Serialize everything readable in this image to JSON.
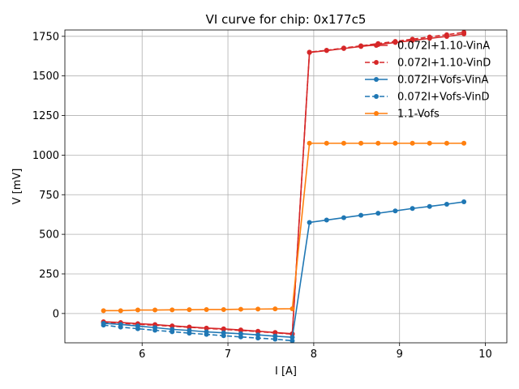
{
  "chart_data": {
    "type": "line",
    "title": "VI curve for chip: 0x177c5",
    "xlabel": "I [A]",
    "ylabel": "V [mV]",
    "xlim": [
      5.1,
      10.25
    ],
    "ylim": [
      -185,
      1790
    ],
    "xticks": [
      6,
      7,
      8,
      9,
      10
    ],
    "yticks": [
      0,
      250,
      500,
      750,
      1000,
      1250,
      1500,
      1750
    ],
    "grid": true,
    "legend_position": "upper-right",
    "x": [
      5.55,
      5.75,
      5.95,
      6.15,
      6.35,
      6.55,
      6.75,
      6.95,
      7.15,
      7.35,
      7.55,
      7.75,
      7.95,
      8.15,
      8.35,
      8.55,
      8.75,
      8.95,
      9.15,
      9.35,
      9.55,
      9.75
    ],
    "series": [
      {
        "name": "0.072I+1.10-VinA",
        "color": "#d62728",
        "dashed": false,
        "x": [
          5.55,
          5.75,
          5.95,
          6.15,
          6.35,
          6.55,
          6.75,
          6.95,
          7.15,
          7.35,
          7.55,
          7.75,
          7.95,
          8.15,
          8.35,
          8.55,
          8.75,
          8.95,
          9.15,
          9.35,
          9.55,
          9.75
        ],
        "values": [
          -52,
          -57,
          -64,
          -70,
          -78,
          -85,
          -92,
          -97,
          -104,
          -112,
          -120,
          -128,
          1648,
          1660,
          1673,
          1686,
          1698,
          1711,
          1724,
          1737,
          1749,
          1765
        ]
      },
      {
        "name": "0.072I+1.10-VinD",
        "color": "#d62728",
        "dashed": true,
        "x": [
          5.55,
          5.75,
          5.95,
          6.15,
          6.35,
          6.55,
          6.75,
          6.95,
          7.15,
          7.35,
          7.55,
          7.75,
          7.95,
          8.15,
          8.35,
          8.55,
          8.75,
          8.95,
          9.15,
          9.35,
          9.55,
          9.75
        ],
        "values": [
          -56,
          -61,
          -68,
          -74,
          -80,
          -87,
          -94,
          -100,
          -107,
          -114,
          -122,
          -130,
          1650,
          1662,
          1676,
          1690,
          1704,
          1718,
          1732,
          1746,
          1760,
          1775
        ]
      },
      {
        "name": "0.072I+Vofs-VinA",
        "color": "#1f77b4",
        "dashed": false,
        "x": [
          5.55,
          5.75,
          5.95,
          6.15,
          6.35,
          6.55,
          6.75,
          6.95,
          7.15,
          7.35,
          7.55,
          7.75,
          7.95,
          8.15,
          8.35,
          8.55,
          8.75,
          8.95,
          9.15,
          9.35,
          9.55,
          9.75
        ],
        "values": [
          -62,
          -69,
          -79,
          -89,
          -100,
          -107,
          -116,
          -122,
          -128,
          -135,
          -143,
          -150,
          575,
          590,
          605,
          620,
          633,
          648,
          663,
          676,
          690,
          705
        ]
      },
      {
        "name": "0.072I+Vofs-VinD",
        "color": "#1f77b4",
        "dashed": true,
        "x": [
          5.55,
          5.75,
          5.95,
          6.15,
          6.35,
          6.55,
          6.75,
          6.95,
          7.15,
          7.35,
          7.55,
          7.75
        ],
        "values": [
          -73,
          -86,
          -96,
          -106,
          -115,
          -124,
          -132,
          -140,
          -148,
          -155,
          -162,
          -172
        ]
      },
      {
        "name": "1.1-Vofs",
        "color": "#ff7f0e",
        "dashed": false,
        "x": [
          5.55,
          5.75,
          5.95,
          6.15,
          6.35,
          6.55,
          6.75,
          6.95,
          7.15,
          7.35,
          7.55,
          7.75,
          7.95,
          8.15,
          8.35,
          8.55,
          8.75,
          8.95,
          9.15,
          9.35,
          9.55,
          9.75
        ],
        "values": [
          18,
          18,
          22,
          22,
          23,
          24,
          25,
          25,
          27,
          28,
          29,
          30,
          1075,
          1075,
          1075,
          1075,
          1075,
          1075,
          1075,
          1075,
          1075,
          1075
        ]
      }
    ]
  }
}
